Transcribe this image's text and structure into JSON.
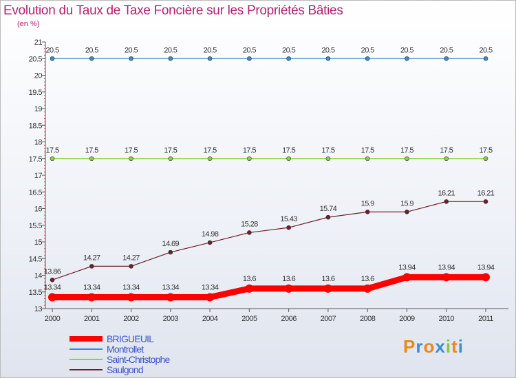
{
  "chart_data": {
    "type": "line",
    "title": "Evolution du Taux de Taxe Foncière sur les Propriétés Bâties",
    "subtitle": "(en %)",
    "xlabel": "",
    "ylabel": "",
    "categories": [
      "2000",
      "2001",
      "2002",
      "2003",
      "2004",
      "2005",
      "2006",
      "2007",
      "2008",
      "2009",
      "2010",
      "2011"
    ],
    "ylim": [
      13,
      21
    ],
    "yticks": [
      "13",
      "13.5",
      "14",
      "14.5",
      "15",
      "15.5",
      "16",
      "16.5",
      "17",
      "17.5",
      "18",
      "18.5",
      "19",
      "19.5",
      "20",
      "20.5",
      "21"
    ],
    "series": [
      {
        "name": "BRIGUEUIL",
        "color": "#ff0000",
        "values": [
          13.34,
          13.34,
          13.34,
          13.34,
          13.34,
          13.6,
          13.6,
          13.6,
          13.6,
          13.94,
          13.94,
          13.94
        ],
        "labels": [
          "13.34",
          "13.34",
          "13.34",
          "13.34",
          "13.34",
          "13.6",
          "13.6",
          "13.6",
          "13.6",
          "13.94",
          "13.94",
          "13.94"
        ]
      },
      {
        "name": "Montrollet",
        "color": "#3b8bc8",
        "values": [
          20.5,
          20.5,
          20.5,
          20.5,
          20.5,
          20.5,
          20.5,
          20.5,
          20.5,
          20.5,
          20.5,
          20.5
        ],
        "labels": [
          "20.5",
          "20.5",
          "20.5",
          "20.5",
          "20.5",
          "20.5",
          "20.5",
          "20.5",
          "20.5",
          "20.5",
          "20.5",
          "20.5"
        ]
      },
      {
        "name": "Saint-Christophe",
        "color": "#8cd13c",
        "values": [
          17.5,
          17.5,
          17.5,
          17.5,
          17.5,
          17.5,
          17.5,
          17.5,
          17.5,
          17.5,
          17.5,
          17.5
        ],
        "labels": [
          "17.5",
          "17.5",
          "17.5",
          "17.5",
          "17.5",
          "17.5",
          "17.5",
          "17.5",
          "17.5",
          "17.5",
          "17.5",
          "17.5"
        ]
      },
      {
        "name": "Saulgond",
        "color": "#6b1f2a",
        "values": [
          13.86,
          14.27,
          14.27,
          14.69,
          14.98,
          15.28,
          15.43,
          15.74,
          15.9,
          15.9,
          16.21,
          16.21
        ],
        "labels": [
          "13.86",
          "14.27",
          "14.27",
          "14.69",
          "14.98",
          "15.28",
          "15.43",
          "15.74",
          "15.9",
          "15.9",
          "16.21",
          "16.21"
        ]
      }
    ],
    "legend_position": "bottom-left",
    "grid": false
  },
  "brand": {
    "p": "P",
    "r": "r",
    "o": "o",
    "x": "x",
    "i": "i",
    "t": "t",
    "i2": "i"
  }
}
